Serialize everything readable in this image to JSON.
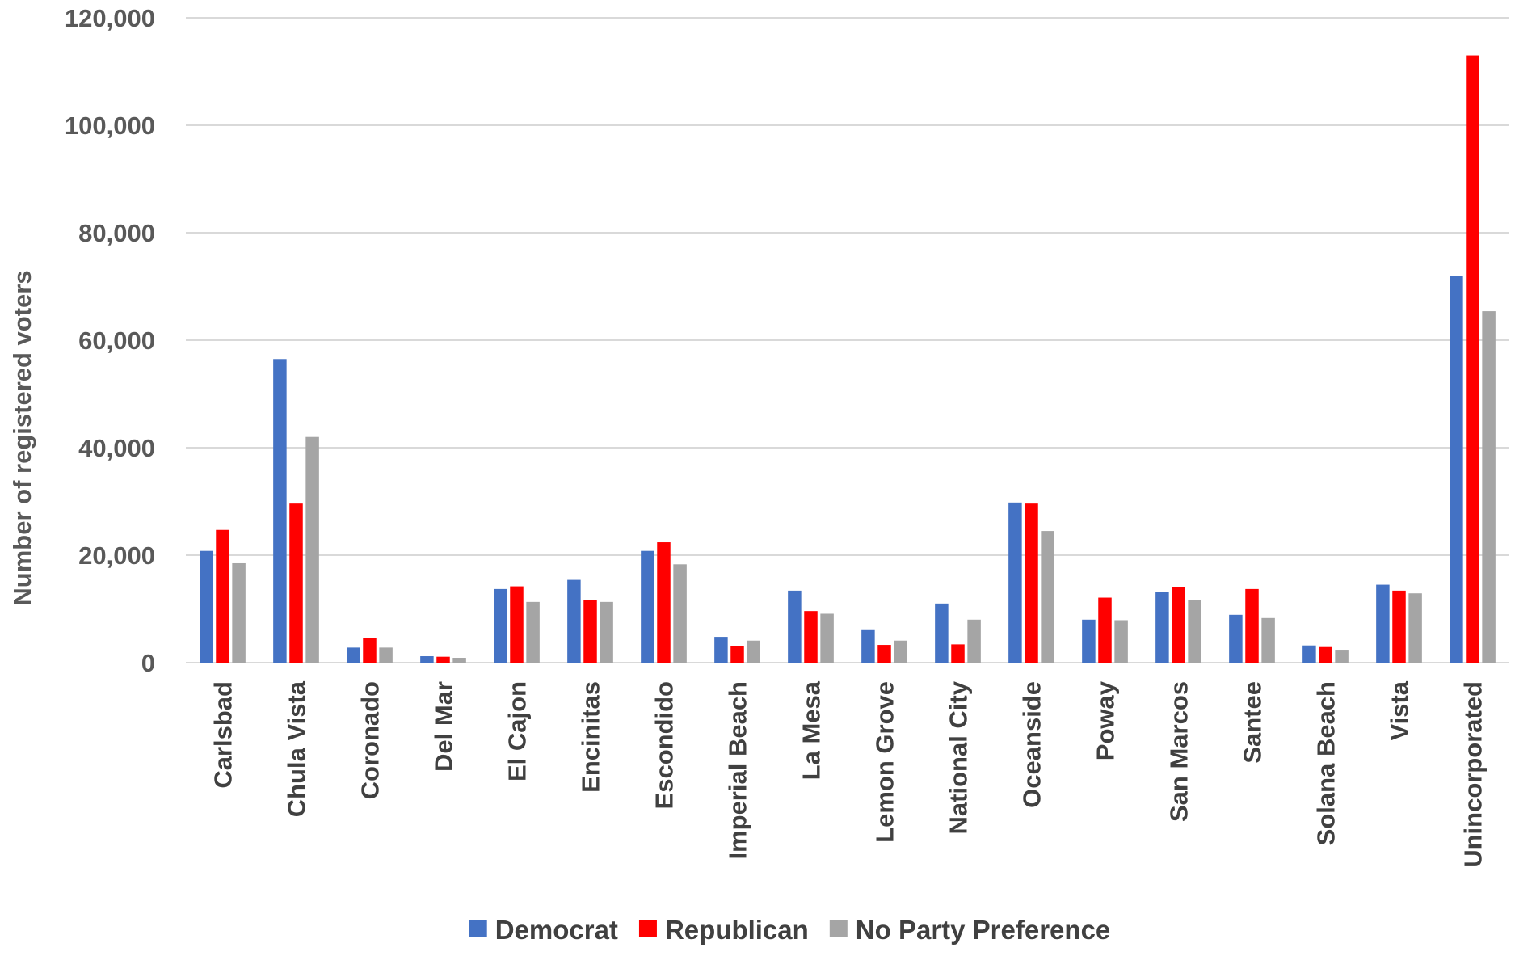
{
  "chart_data": {
    "type": "bar",
    "title": "",
    "xlabel": "",
    "ylabel": "Number of registered voters",
    "ylim": [
      0,
      120000
    ],
    "yticks": [
      0,
      20000,
      40000,
      60000,
      80000,
      100000,
      120000
    ],
    "ytick_labels": [
      "0",
      "20,000",
      "40,000",
      "60,000",
      "80,000",
      "100,000",
      "120,000"
    ],
    "grid": true,
    "legend_position": "bottom-center",
    "categories": [
      "Carlsbad",
      "Chula Vista",
      "Coronado",
      "Del Mar",
      "El Cajon",
      "Encinitas",
      "Escondido",
      "Imperial Beach",
      "La Mesa",
      "Lemon Grove",
      "National City",
      "Oceanside",
      "Poway",
      "San Marcos",
      "Santee",
      "Solana Beach",
      "Vista",
      "Unincorporated"
    ],
    "series": [
      {
        "name": "Democrat",
        "color": "#4472c4",
        "values": [
          20800,
          56500,
          2800,
          1200,
          13700,
          15400,
          20800,
          4800,
          13400,
          6200,
          11000,
          29800,
          8000,
          13200,
          8900,
          3200,
          14500,
          72000
        ]
      },
      {
        "name": "Republican",
        "color": "#ff0000",
        "values": [
          24700,
          29600,
          4600,
          1100,
          14200,
          11700,
          22400,
          3100,
          9600,
          3300,
          3400,
          29600,
          12100,
          14100,
          13700,
          2900,
          13400,
          113000
        ]
      },
      {
        "name": "No Party Preference",
        "color": "#a5a5a5",
        "values": [
          18500,
          42000,
          2800,
          900,
          11300,
          11300,
          18300,
          4100,
          9100,
          4100,
          8000,
          24500,
          7900,
          11700,
          8300,
          2400,
          12900,
          65400
        ]
      }
    ]
  }
}
